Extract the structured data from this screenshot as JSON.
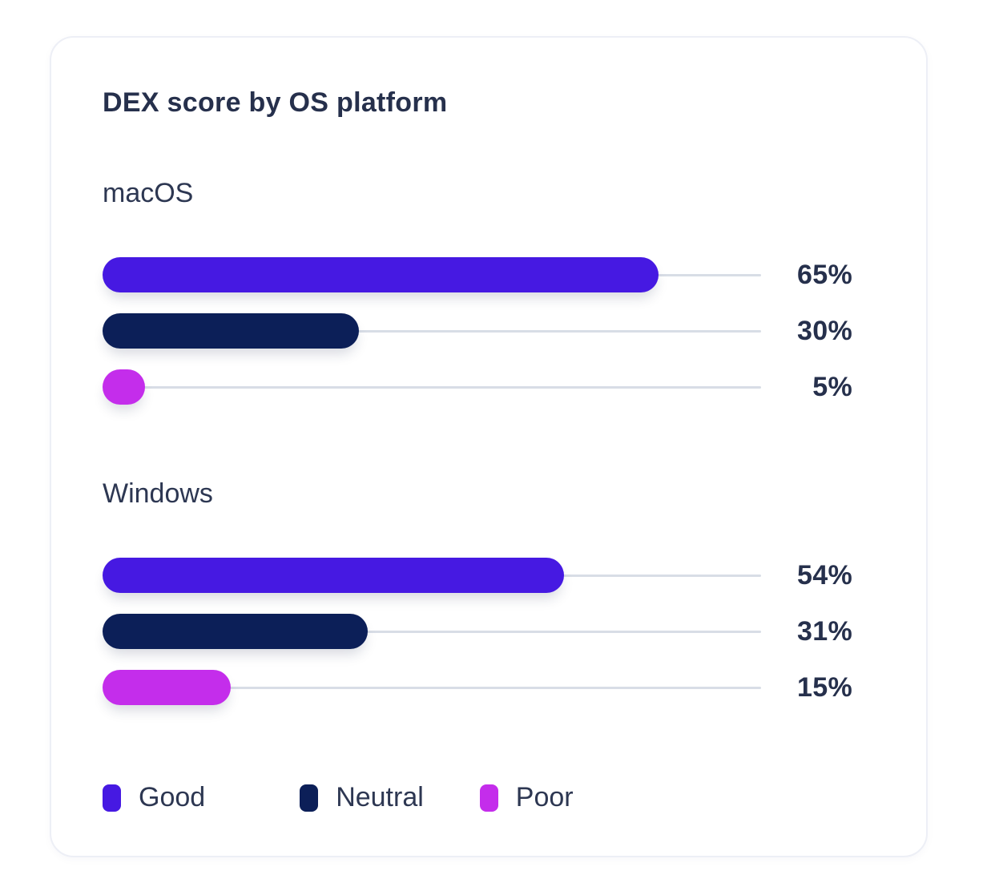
{
  "card": {
    "title": "DEX score by OS platform"
  },
  "chart_data": {
    "type": "bar",
    "orientation": "horizontal",
    "title": "DEX score by OS platform",
    "unit": "%",
    "xlim": [
      0,
      77
    ],
    "grid": false,
    "categories": [
      "macOS",
      "Windows"
    ],
    "series": [
      {
        "name": "Good",
        "values": [
          65,
          54
        ]
      },
      {
        "name": "Neutral",
        "values": [
          30,
          31
        ]
      },
      {
        "name": "Poor",
        "values": [
          5,
          15
        ]
      }
    ],
    "value_labels": {
      "macOS": {
        "Good": "65%",
        "Neutral": "30%",
        "Poor": "5%"
      },
      "Windows": {
        "Good": "54%",
        "Neutral": "31%",
        "Poor": "15%"
      }
    },
    "legend": {
      "position": "bottom",
      "items": [
        {
          "label": "Good",
          "color": "#4619e2"
        },
        {
          "label": "Neutral",
          "color": "#0c1f58"
        },
        {
          "label": "Poor",
          "color": "#c42deb"
        }
      ]
    },
    "colors": {
      "good": "#4619e2",
      "neutral": "#0c1f58",
      "poor": "#c42deb",
      "track": "#d8dde6",
      "title_text": "#26304c",
      "label_text": "#2d3752",
      "value_text": "#26304c",
      "card_border": "#edeff6",
      "card_background": "#ffffff"
    }
  }
}
